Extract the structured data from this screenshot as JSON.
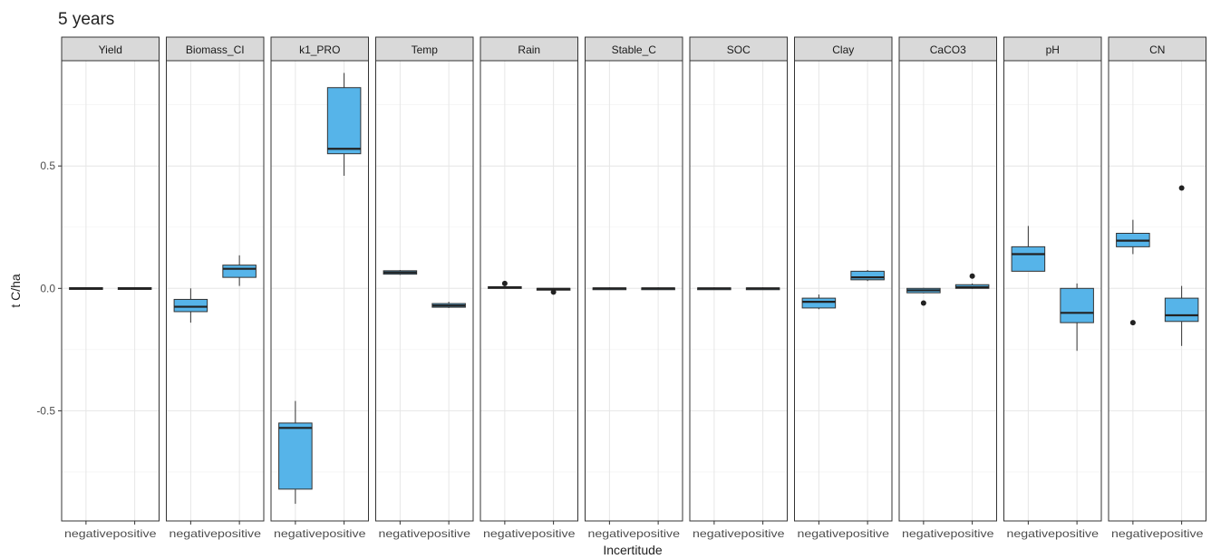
{
  "chart_data": {
    "type": "boxplot",
    "title": "5  years",
    "xlabel": "Incertitude",
    "ylabel": "t C/ha",
    "ylim": [
      -0.95,
      0.93
    ],
    "y_ticks": [
      -0.5,
      0.0,
      0.5
    ],
    "y_tick_labels": [
      "-0.5",
      "0.0",
      "0.5"
    ],
    "categories": [
      "negative",
      "positive"
    ],
    "grid": true,
    "box_color": "#56B4E9",
    "panels": [
      {
        "name": "Yield",
        "boxes": [
          {
            "category": "negative",
            "min": -0.005,
            "q1": -0.003,
            "median": 0.0,
            "q3": 0.003,
            "max": 0.005,
            "outliers": []
          },
          {
            "category": "positive",
            "min": -0.005,
            "q1": -0.003,
            "median": 0.0,
            "q3": 0.003,
            "max": 0.005,
            "outliers": []
          }
        ]
      },
      {
        "name": "Biomass_CI",
        "boxes": [
          {
            "category": "negative",
            "min": -0.14,
            "q1": -0.095,
            "median": -0.075,
            "q3": -0.045,
            "max": 0.0,
            "outliers": []
          },
          {
            "category": "positive",
            "min": 0.01,
            "q1": 0.045,
            "median": 0.08,
            "q3": 0.095,
            "max": 0.135,
            "outliers": []
          }
        ]
      },
      {
        "name": "k1_PRO",
        "boxes": [
          {
            "category": "negative",
            "min": -0.88,
            "q1": -0.82,
            "median": -0.57,
            "q3": -0.55,
            "max": -0.46,
            "outliers": []
          },
          {
            "category": "positive",
            "min": 0.46,
            "q1": 0.55,
            "median": 0.57,
            "q3": 0.82,
            "max": 0.88,
            "outliers": []
          }
        ]
      },
      {
        "name": "Temp",
        "boxes": [
          {
            "category": "negative",
            "min": 0.055,
            "q1": 0.058,
            "median": 0.065,
            "q3": 0.072,
            "max": 0.075,
            "outliers": []
          },
          {
            "category": "positive",
            "min": -0.08,
            "q1": -0.077,
            "median": -0.07,
            "q3": -0.062,
            "max": -0.055,
            "outliers": []
          }
        ]
      },
      {
        "name": "Rain",
        "boxes": [
          {
            "category": "negative",
            "min": 0.0,
            "q1": 0.002,
            "median": 0.004,
            "q3": 0.007,
            "max": 0.012,
            "outliers": [
              0.02
            ]
          },
          {
            "category": "positive",
            "min": -0.008,
            "q1": -0.004,
            "median": -0.002,
            "q3": 0.0,
            "max": 0.0,
            "outliers": [
              -0.015
            ]
          }
        ]
      },
      {
        "name": "Stable_C",
        "boxes": [
          {
            "category": "negative",
            "min": -0.004,
            "q1": -0.002,
            "median": 0.0,
            "q3": 0.002,
            "max": 0.004,
            "outliers": []
          },
          {
            "category": "positive",
            "min": -0.004,
            "q1": -0.002,
            "median": 0.0,
            "q3": 0.002,
            "max": 0.004,
            "outliers": []
          }
        ]
      },
      {
        "name": "SOC",
        "boxes": [
          {
            "category": "negative",
            "min": -0.004,
            "q1": -0.002,
            "median": 0.0,
            "q3": 0.002,
            "max": 0.004,
            "outliers": []
          },
          {
            "category": "positive",
            "min": -0.004,
            "q1": -0.002,
            "median": 0.0,
            "q3": 0.002,
            "max": 0.004,
            "outliers": []
          }
        ]
      },
      {
        "name": "Clay",
        "boxes": [
          {
            "category": "negative",
            "min": -0.085,
            "q1": -0.08,
            "median": -0.055,
            "q3": -0.04,
            "max": -0.025,
            "outliers": []
          },
          {
            "category": "positive",
            "min": 0.03,
            "q1": 0.035,
            "median": 0.045,
            "q3": 0.07,
            "max": 0.075,
            "outliers": []
          }
        ]
      },
      {
        "name": "CaCO3",
        "boxes": [
          {
            "category": "negative",
            "min": -0.02,
            "q1": -0.018,
            "median": -0.008,
            "q3": 0.0,
            "max": 0.002,
            "outliers": [
              -0.06
            ]
          },
          {
            "category": "positive",
            "min": -0.002,
            "q1": 0.0,
            "median": 0.005,
            "q3": 0.015,
            "max": 0.02,
            "outliers": [
              0.05
            ]
          }
        ]
      },
      {
        "name": "pH",
        "boxes": [
          {
            "category": "negative",
            "min": 0.07,
            "q1": 0.07,
            "median": 0.14,
            "q3": 0.17,
            "max": 0.255,
            "outliers": []
          },
          {
            "category": "positive",
            "min": -0.255,
            "q1": -0.14,
            "median": -0.1,
            "q3": 0.0,
            "max": 0.02,
            "outliers": []
          }
        ]
      },
      {
        "name": "CN",
        "boxes": [
          {
            "category": "negative",
            "min": 0.14,
            "q1": 0.17,
            "median": 0.195,
            "q3": 0.225,
            "max": 0.28,
            "outliers": [
              -0.14
            ]
          },
          {
            "category": "positive",
            "min": -0.235,
            "q1": -0.135,
            "median": -0.11,
            "q3": -0.04,
            "max": 0.01,
            "outliers": [
              0.41
            ]
          }
        ]
      }
    ]
  }
}
